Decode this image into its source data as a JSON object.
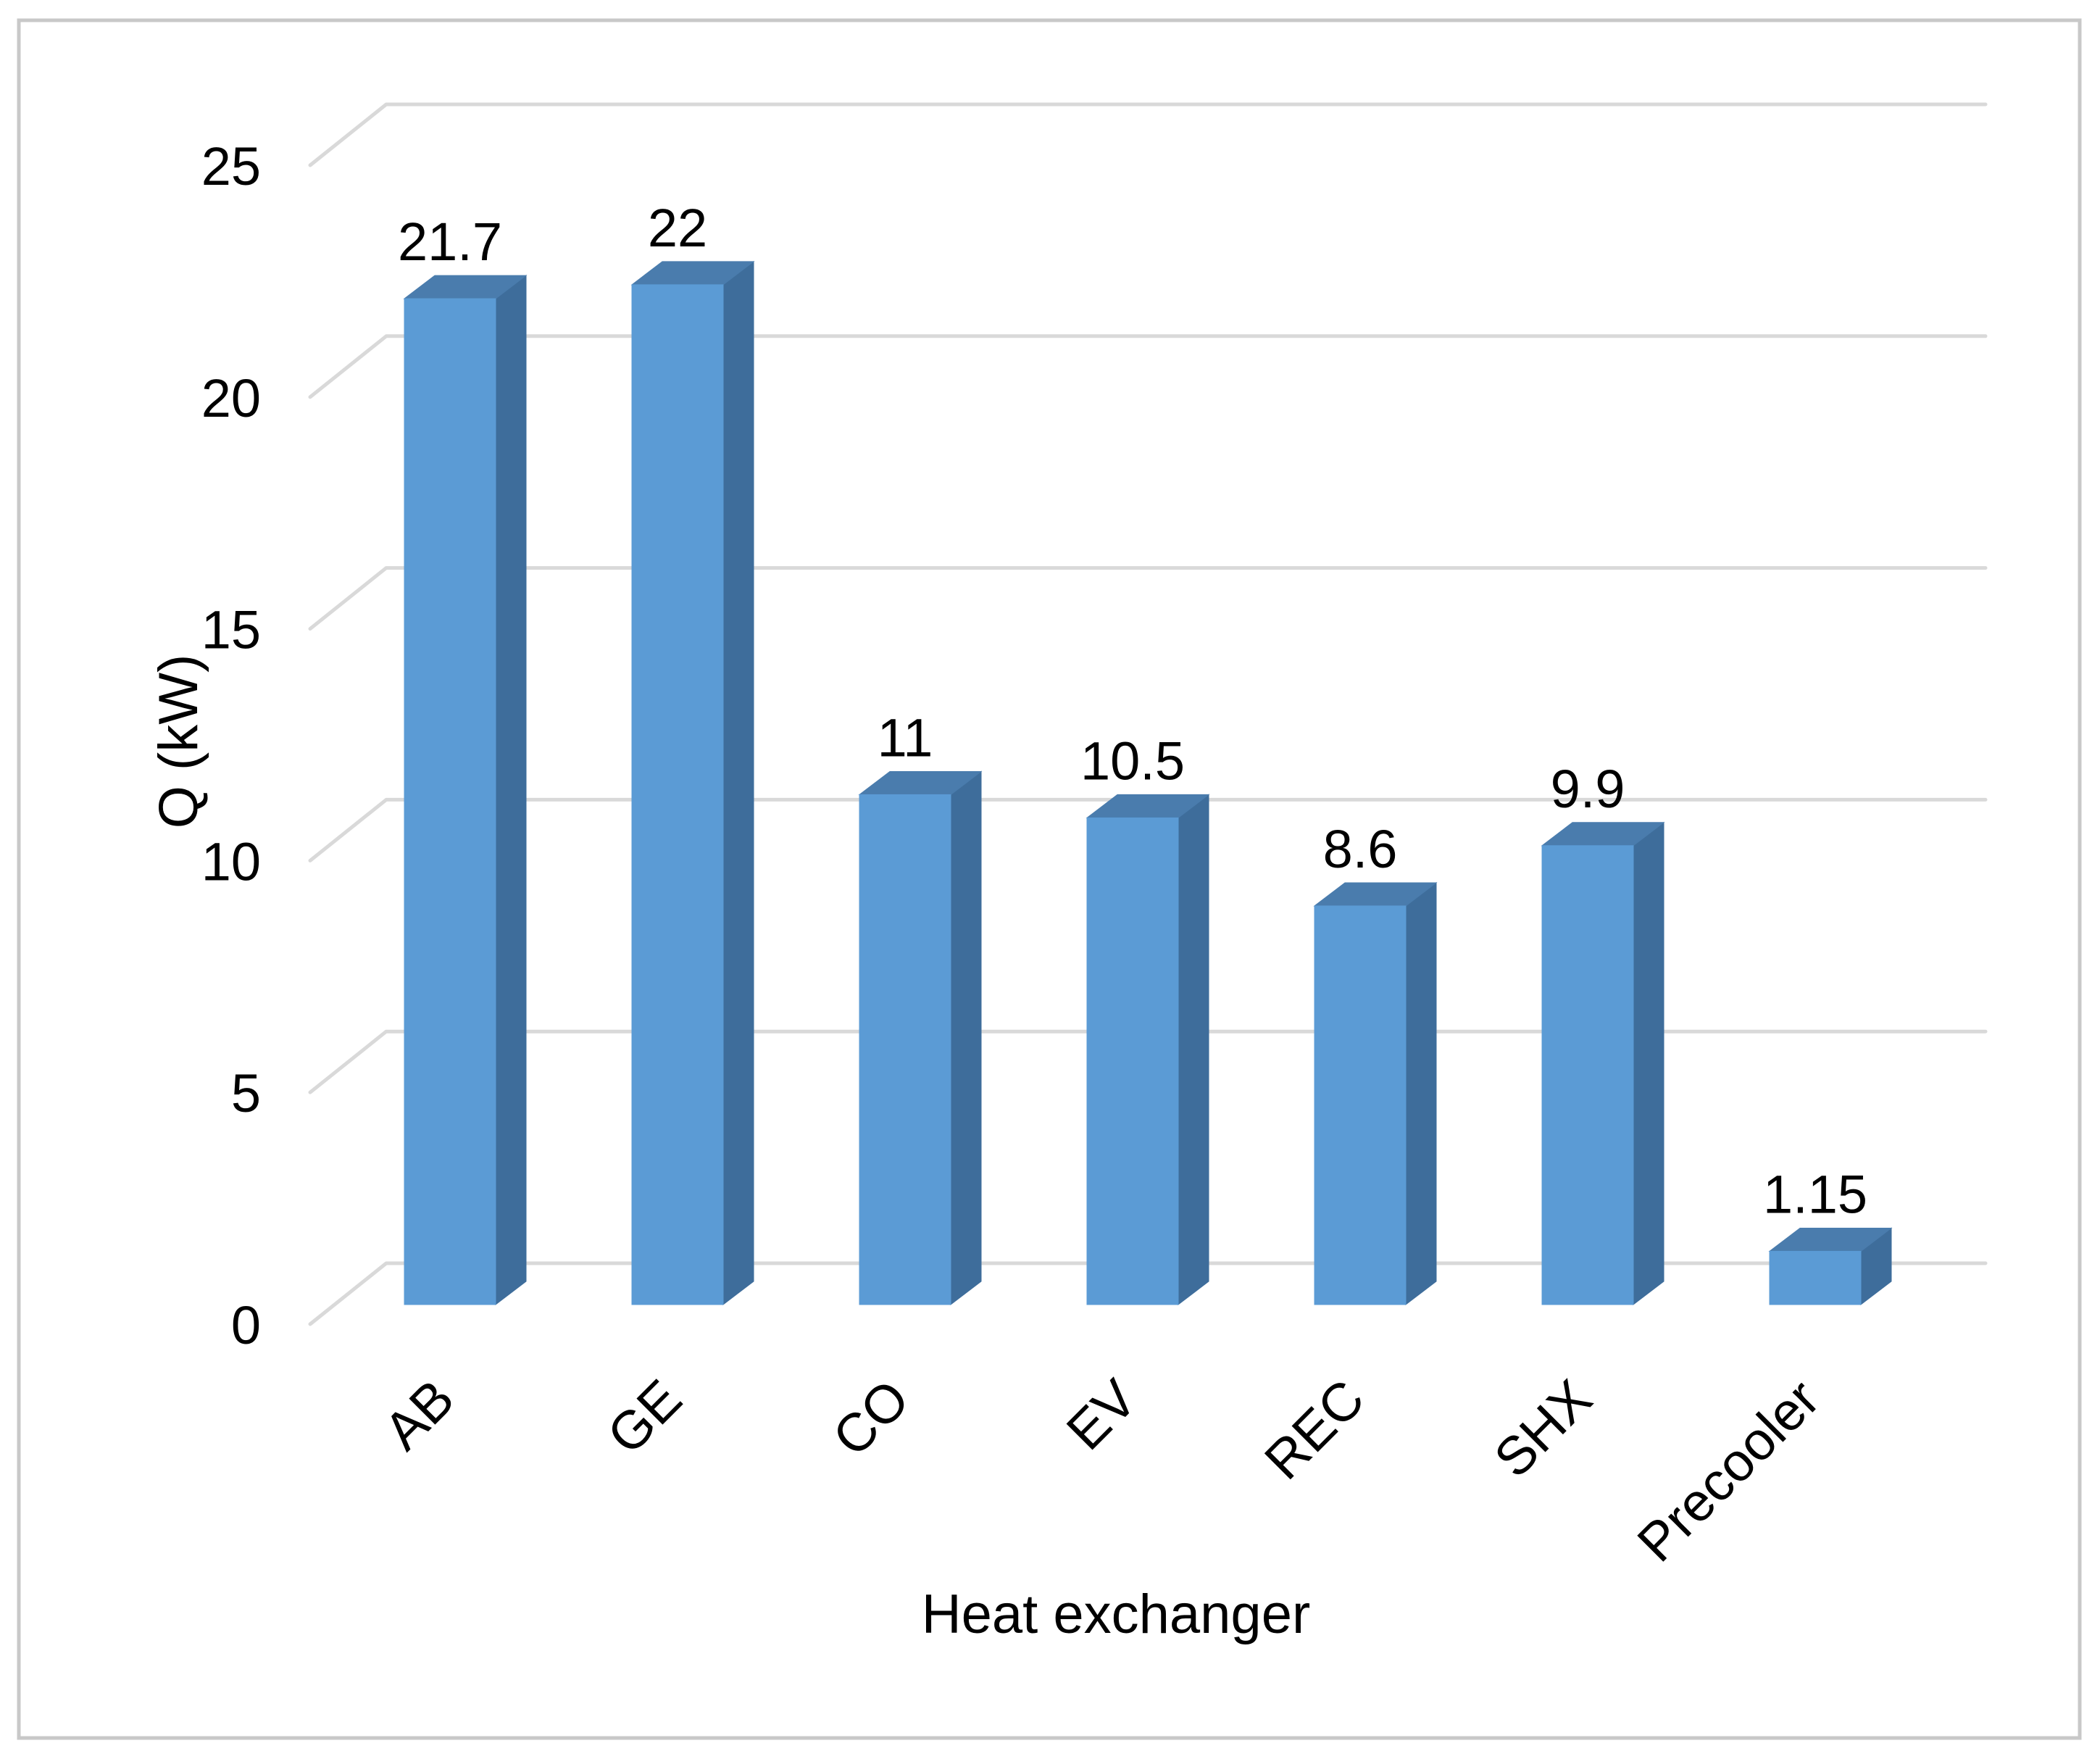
{
  "chart_data": {
    "type": "bar",
    "style": "3d-column",
    "title": "",
    "xlabel": "Heat exchanger",
    "ylabel": "Q (kW)",
    "categories": [
      "AB",
      "GE",
      "CO",
      "EV",
      "REC",
      "SHX",
      "Precooler"
    ],
    "values": [
      21.7,
      22,
      11,
      10.5,
      8.6,
      9.9,
      1.15
    ],
    "data_labels": [
      "21.7",
      "22",
      "11",
      "10.5",
      "8.6",
      "9.9",
      "1.15"
    ],
    "yticks": [
      0,
      5,
      10,
      15,
      20,
      25
    ],
    "ytick_labels": [
      "0",
      "5",
      "10",
      "15",
      "20",
      "25"
    ],
    "ylim": [
      0,
      25
    ],
    "grid": true,
    "legend_visible": false,
    "colors": {
      "bar_front": "#5B9BD5",
      "bar_top": "#4A7CAD",
      "bar_side": "#3E6D9B",
      "gridline": "#D9D9D9",
      "text": "#000000",
      "frame_border": "#C8C8C8",
      "background": "#FFFFFF"
    }
  }
}
